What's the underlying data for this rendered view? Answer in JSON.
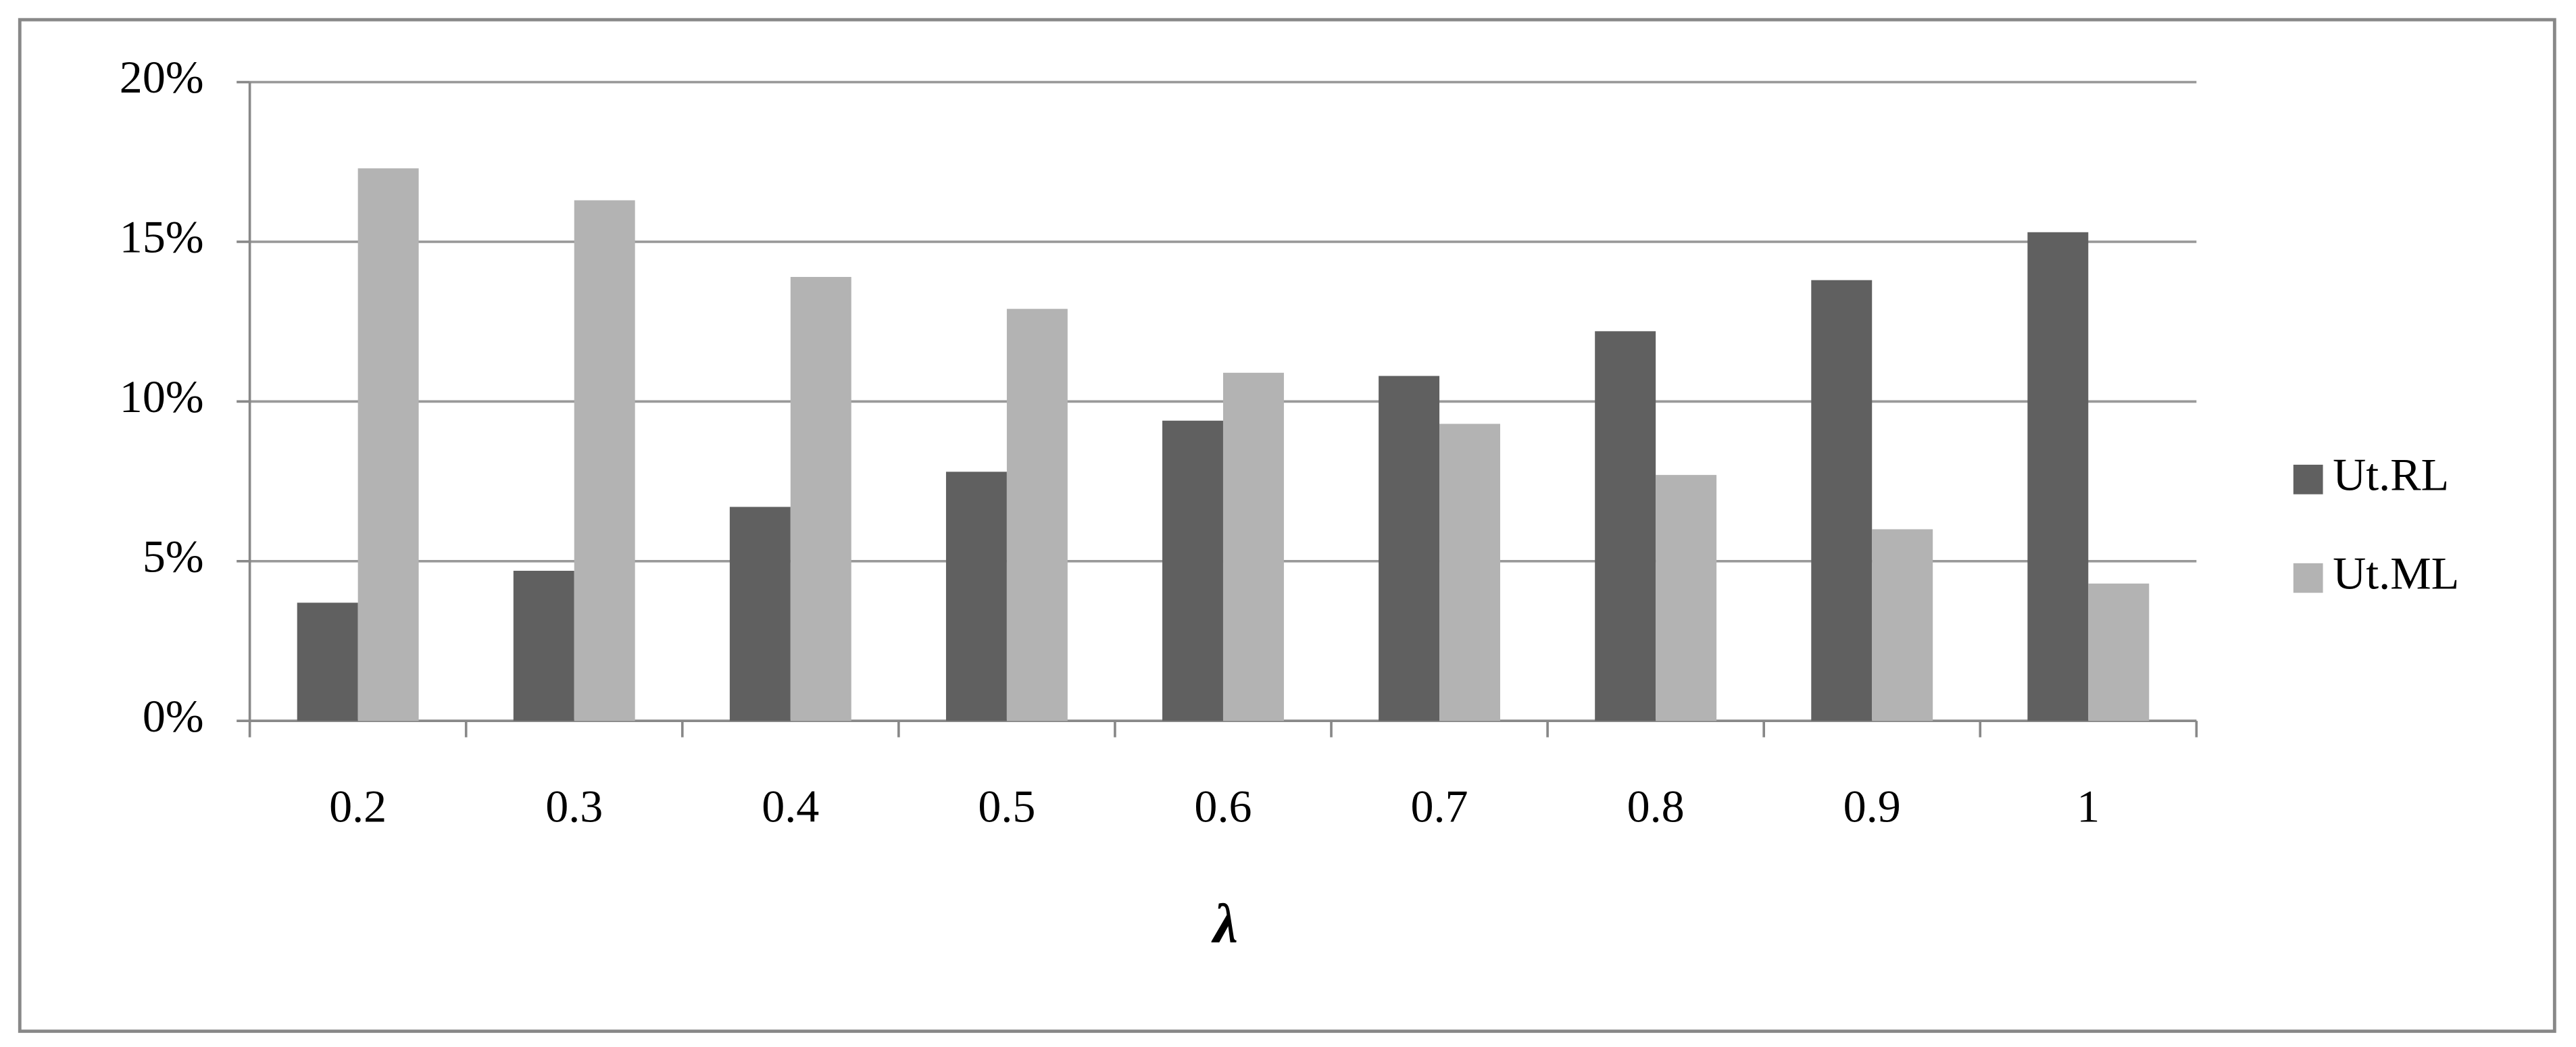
{
  "chart_data": {
    "type": "bar",
    "x_label": "λ",
    "categories": [
      "0.2",
      "0.3",
      "0.4",
      "0.5",
      "0.6",
      "0.7",
      "0.8",
      "0.9",
      "1"
    ],
    "series": [
      {
        "name": "Ut.RL",
        "color": "#606060",
        "values": [
          3.7,
          4.7,
          6.7,
          7.8,
          9.4,
          10.8,
          12.2,
          13.8,
          15.3
        ]
      },
      {
        "name": "Ut.ML",
        "color": "#b3b3b3",
        "values": [
          17.3,
          16.3,
          13.9,
          12.9,
          10.9,
          9.3,
          7.7,
          6.0,
          4.3
        ]
      }
    ],
    "ylim": [
      0,
      20
    ],
    "yticks": [
      {
        "value": 0,
        "label": "0%"
      },
      {
        "value": 5,
        "label": "5%"
      },
      {
        "value": 10,
        "label": "10%"
      },
      {
        "value": 15,
        "label": "15%"
      },
      {
        "value": 20,
        "label": "20%"
      }
    ],
    "grid": true,
    "legend": "right"
  }
}
